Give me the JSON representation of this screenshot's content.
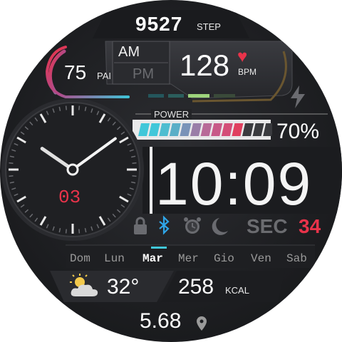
{
  "steps": {
    "value": "9527",
    "unit": "STEP"
  },
  "pai": {
    "value": "75",
    "unit": "PAI"
  },
  "ampm": {
    "am": "AM",
    "pm": "PM",
    "active": "AM"
  },
  "heart": {
    "value": "128",
    "unit": "BPM"
  },
  "power": {
    "label": "POWER",
    "percent_text": "70%",
    "segments_filled": 10,
    "segments_total": 13
  },
  "analog": {
    "hour": 10,
    "minute": 9,
    "date": "03"
  },
  "digital": {
    "time": "10:09"
  },
  "status": {
    "sec_label": "SEC",
    "sec_value": "34"
  },
  "days": {
    "items": [
      "Dom",
      "Lun",
      "Mar",
      "Mer",
      "Gio",
      "Ven",
      "Sab"
    ],
    "active_index": 2
  },
  "weather": {
    "temp": "32°",
    "icon": "partly-cloudy-icon"
  },
  "calories": {
    "value": "258",
    "unit": "KCAL"
  },
  "distance": {
    "value": "5.68",
    "icon": "location-pin-icon"
  },
  "colors": {
    "accent_red": "#e8334a",
    "accent_cyan": "#41c7d9",
    "accent_green": "#9dd37c",
    "bluetooth": "#2fa6e8"
  }
}
